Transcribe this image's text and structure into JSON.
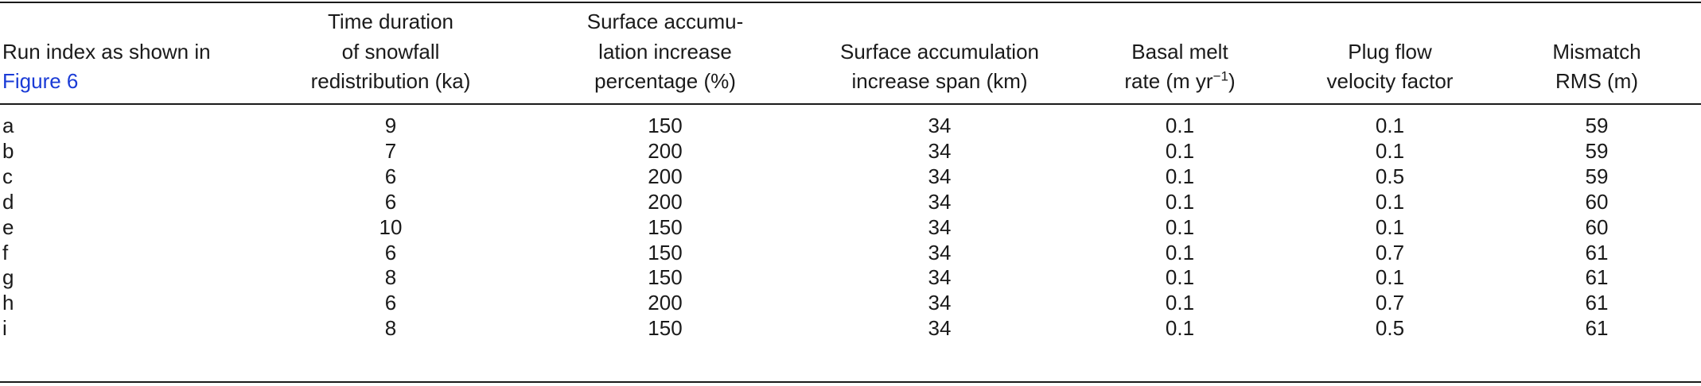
{
  "table": {
    "header": [
      {
        "lines": [
          "Run index as shown in"
        ],
        "link": "Figure 6"
      },
      {
        "lines": [
          "Time duration",
          "of snowfall",
          "redistribution (ka)"
        ]
      },
      {
        "lines": [
          "Surface accumu-",
          "lation increase",
          "percentage (%)"
        ]
      },
      {
        "lines": [
          "Surface accumulation",
          "increase span (km)"
        ]
      },
      {
        "lines": [
          "Basal melt"
        ],
        "unit": {
          "text": "rate (m yr",
          "sup": "−1",
          "tail": ")"
        }
      },
      {
        "lines": [
          "Plug flow",
          "velocity factor"
        ]
      },
      {
        "lines": [
          "Mismatch",
          "RMS (m)"
        ]
      }
    ],
    "rows": [
      [
        "a",
        9,
        150,
        34,
        0.1,
        0.1,
        59
      ],
      [
        "b",
        7,
        200,
        34,
        0.1,
        0.1,
        59
      ],
      [
        "c",
        6,
        200,
        34,
        0.1,
        0.5,
        59
      ],
      [
        "d",
        6,
        200,
        34,
        0.1,
        0.1,
        60
      ],
      [
        "e",
        10,
        150,
        34,
        0.1,
        0.1,
        60
      ],
      [
        "f",
        6,
        150,
        34,
        0.1,
        0.7,
        61
      ],
      [
        "g",
        8,
        150,
        34,
        0.1,
        0.1,
        61
      ],
      [
        "h",
        6,
        200,
        34,
        0.1,
        0.7,
        61
      ],
      [
        "i",
        8,
        150,
        34,
        0.1,
        0.5,
        61
      ]
    ]
  }
}
